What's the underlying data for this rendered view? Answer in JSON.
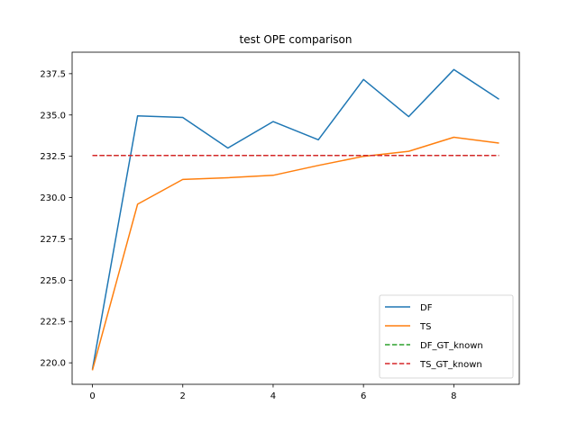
{
  "chart_data": {
    "type": "line",
    "title": "test OPE comparison",
    "xlabel": "",
    "ylabel": "",
    "xlim": [
      -0.45,
      9.45
    ],
    "ylim": [
      218.7,
      238.8
    ],
    "xticks": [
      0,
      2,
      4,
      6,
      8
    ],
    "yticks": [
      220.0,
      222.5,
      225.0,
      227.5,
      230.0,
      232.5,
      235.0,
      237.5
    ],
    "grid": false,
    "legend_position": "lower-right",
    "series": [
      {
        "name": "DF",
        "color": "#1f77b4",
        "linestyle": "solid",
        "x": [
          0,
          1,
          2,
          3,
          4,
          5,
          6,
          7,
          8,
          9
        ],
        "y": [
          219.6,
          234.95,
          234.85,
          233.0,
          234.6,
          233.5,
          237.15,
          234.9,
          237.75,
          235.95
        ]
      },
      {
        "name": "TS",
        "color": "#ff7f0e",
        "linestyle": "solid",
        "x": [
          0,
          1,
          2,
          3,
          4,
          5,
          6,
          7,
          8,
          9
        ],
        "y": [
          219.55,
          229.6,
          231.1,
          231.2,
          231.35,
          231.95,
          232.5,
          232.8,
          233.65,
          233.3
        ]
      },
      {
        "name": "DF_GT_known",
        "color": "#2ca02c",
        "linestyle": "dashed",
        "x": [
          0,
          9
        ],
        "y": [
          232.55,
          232.55
        ]
      },
      {
        "name": "TS_GT_known",
        "color": "#d62728",
        "linestyle": "dashed",
        "x": [
          0,
          9
        ],
        "y": [
          232.55,
          232.55
        ]
      }
    ]
  }
}
